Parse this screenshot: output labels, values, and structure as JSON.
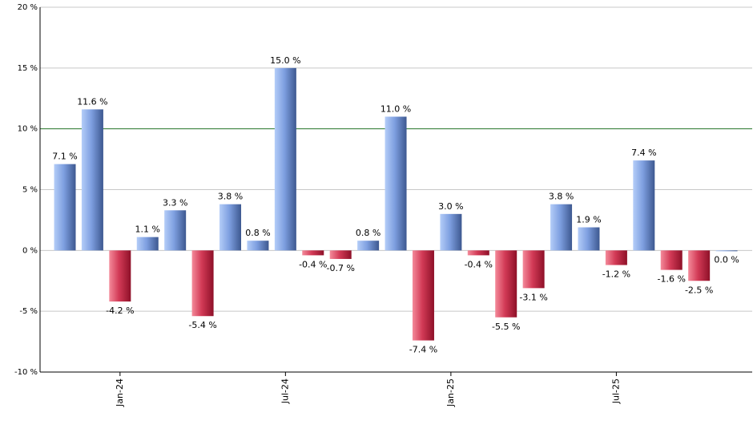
{
  "chart_data": {
    "type": "bar",
    "categories": [
      null,
      null,
      "Jan-24",
      null,
      null,
      null,
      null,
      null,
      "Jul-24",
      null,
      null,
      null,
      null,
      null,
      "Jan-25",
      null,
      null,
      null,
      null,
      null,
      "Jul-25",
      null,
      null,
      null,
      null
    ],
    "values": [
      7.1,
      11.6,
      -4.2,
      1.1,
      3.3,
      -5.4,
      3.8,
      0.8,
      15.0,
      -0.4,
      -0.7,
      0.8,
      11.0,
      -7.4,
      3.0,
      -0.4,
      -5.5,
      -3.1,
      3.8,
      1.9,
      -1.2,
      7.4,
      -1.6,
      -2.5,
      0.0
    ],
    "value_labels": [
      "7.1 %",
      "11.6 %",
      "-4.2 %",
      "1.1 %",
      "3.3 %",
      "-5.4 %",
      "3.8 %",
      "0.8 %",
      "15.0 %",
      "-0.4 %",
      "-0.7 %",
      "0.8 %",
      "11.0 %",
      "-7.4 %",
      "3.0 %",
      "-0.4 %",
      "-5.5 %",
      "-3.1 %",
      "3.8 %",
      "1.9 %",
      "-1.2 %",
      "7.4 %",
      "-1.6 %",
      "-2.5 %",
      "0.0 %"
    ],
    "ylim": [
      -10,
      20
    ],
    "yticks": [
      {
        "value": -10,
        "label": "-10 %"
      },
      {
        "value": -5,
        "label": "-5 %"
      },
      {
        "value": 0,
        "label": "0 %"
      },
      {
        "value": 5,
        "label": "5 %"
      },
      {
        "value": 10,
        "label": "10 %"
      },
      {
        "value": 15,
        "label": "15 %"
      },
      {
        "value": 20,
        "label": "20 %"
      }
    ],
    "grid": true,
    "reference_line": {
      "value": 10,
      "color": "#2e7d32"
    },
    "positive_color": "#6e8fd6",
    "negative_color": "#c8304a"
  }
}
